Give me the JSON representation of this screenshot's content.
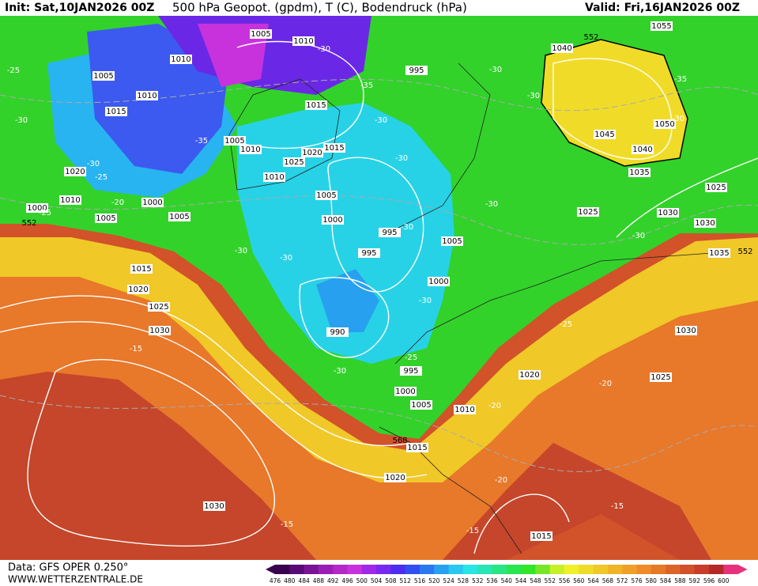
{
  "header": {
    "init": "Init: Sat,10JAN2026 00Z",
    "title": "500 hPa Geopot. (gpdm), T (C), Bodendruck (hPa)",
    "valid": "Valid: Fri,16JAN2026 00Z"
  },
  "footer": {
    "data": "Data: GFS OPER 0.250°",
    "site": "WWW.WETTERZENTRALE.DE"
  },
  "colorbar": {
    "labels": [
      "476",
      "480",
      "484",
      "488",
      "492",
      "496",
      "500",
      "504",
      "508",
      "512",
      "516",
      "520",
      "524",
      "528",
      "532",
      "536",
      "540",
      "544",
      "548",
      "552",
      "556",
      "560",
      "564",
      "568",
      "572",
      "576",
      "580",
      "584",
      "588",
      "592",
      "596",
      "600"
    ],
    "colors": [
      "#3a0050",
      "#5a0a78",
      "#7a1496",
      "#9a1eb4",
      "#b428c8",
      "#c832dc",
      "#a028e6",
      "#7828f0",
      "#4b2ef0",
      "#3250f0",
      "#2a78f0",
      "#28a0f0",
      "#28c8f0",
      "#28e6e6",
      "#28e6b4",
      "#28e682",
      "#28e650",
      "#32e628",
      "#78e628",
      "#c8f028",
      "#f0f028",
      "#f0dc28",
      "#f0c828",
      "#f0b428",
      "#f0a028",
      "#f08c28",
      "#e67828",
      "#dc6428",
      "#d2502a",
      "#c83c2a",
      "#b42828",
      "#e6327d"
    ]
  },
  "map": {
    "pressure_labels": [
      "1005",
      "1010",
      "1010",
      "1005",
      "1010",
      "1015",
      "995",
      "1015",
      "1005",
      "1010",
      "1020",
      "1015",
      "1025",
      "1010",
      "1020",
      "1010",
      "1000",
      "1000",
      "1005",
      "1005",
      "1005",
      "1000",
      "995",
      "995",
      "1005",
      "1000",
      "990",
      "995",
      "1000",
      "1005",
      "1010",
      "1015",
      "1020",
      "1015",
      "1020",
      "1025",
      "1030",
      "1030",
      "1015",
      "1020",
      "1025",
      "1030",
      "1035",
      "1030",
      "1030",
      "1025",
      "1025",
      "1035",
      "1040",
      "1045",
      "1050",
      "1040",
      "1055"
    ],
    "temperature_labels": [
      "-25",
      "-30",
      "-30",
      "-35",
      "-30",
      "-35",
      "-30",
      "-25",
      "-20",
      "-25",
      "-30",
      "-30",
      "-30",
      "-30",
      "-30",
      "-30",
      "-30",
      "-35",
      "-30",
      "-30",
      "-30",
      "-25",
      "-30",
      "-25",
      "-20",
      "-20",
      "-20",
      "-15",
      "-15",
      "-15",
      "-15"
    ],
    "geopotential_labels": [
      "552",
      "552",
      "552",
      "568"
    ]
  }
}
